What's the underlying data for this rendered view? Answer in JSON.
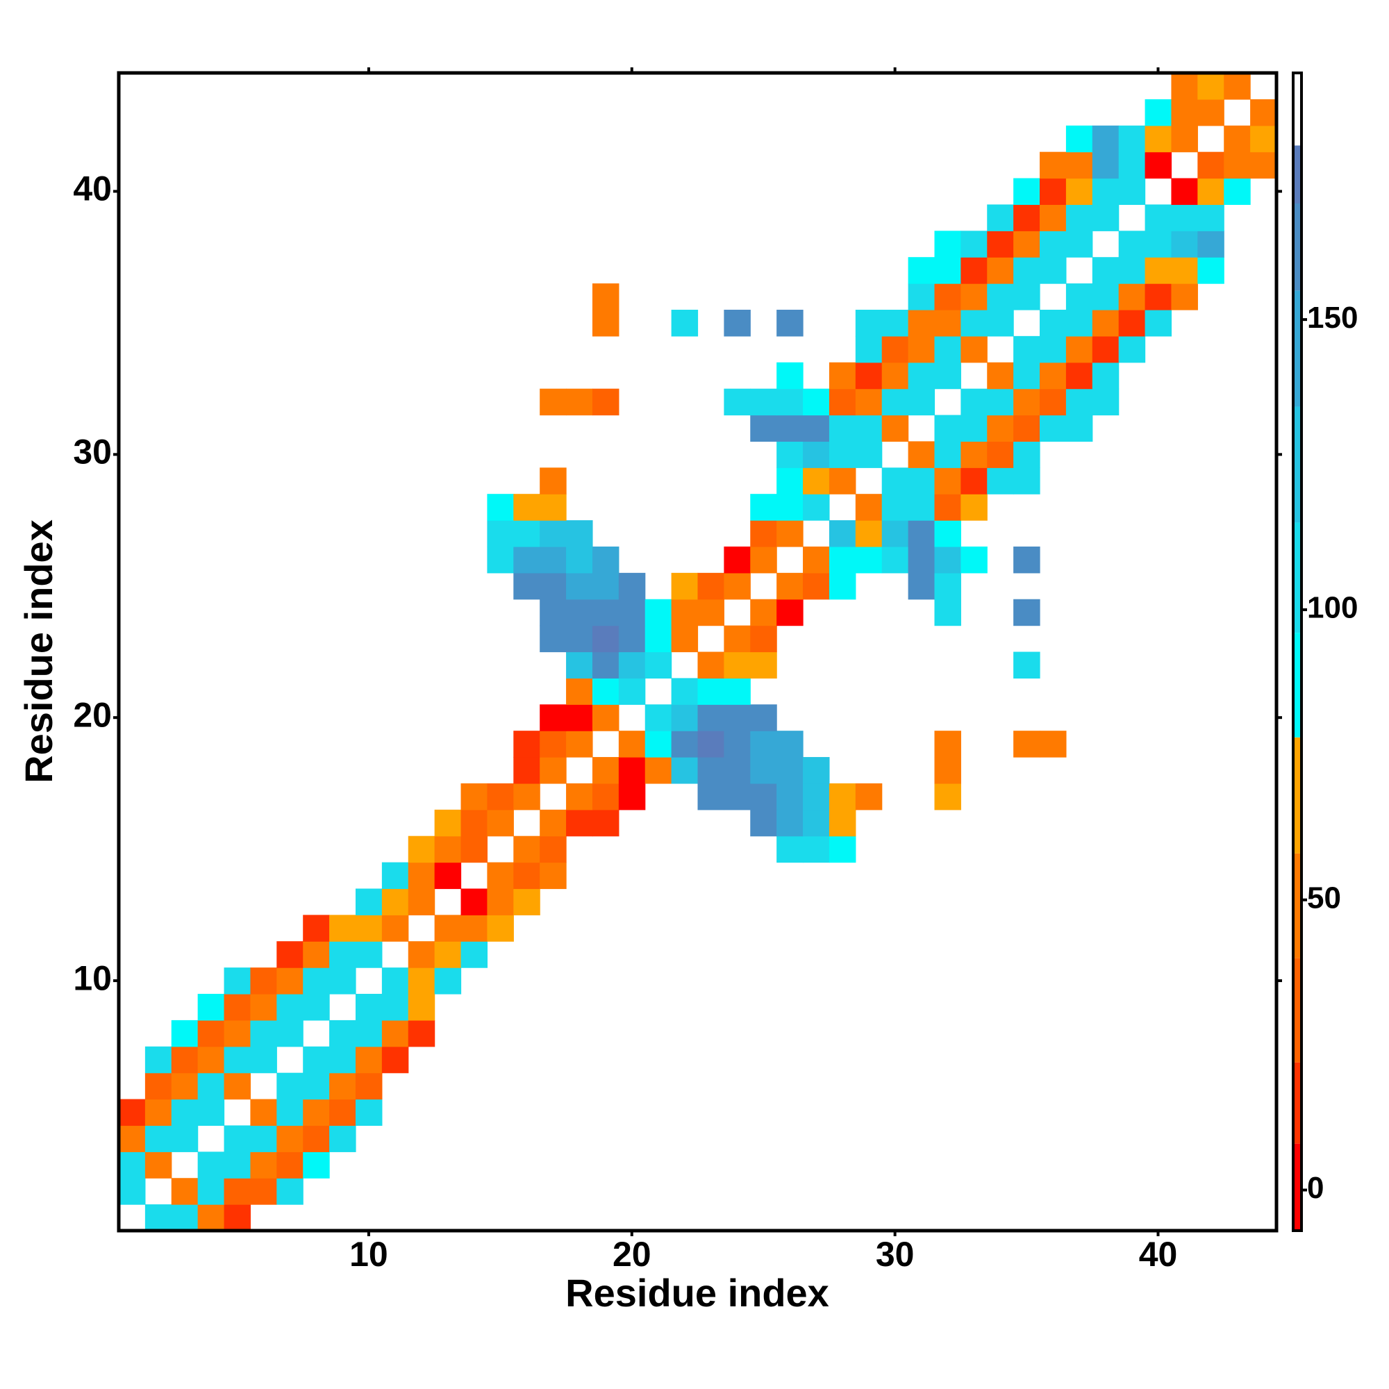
{
  "chart_data": {
    "type": "heatmap",
    "xlabel": "Residue index",
    "ylabel": "Residue index",
    "xlim": [
      0.5,
      44.5
    ],
    "ylim": [
      0.5,
      44.5
    ],
    "xticks": [
      10,
      20,
      30,
      40
    ],
    "yticks": [
      10,
      20,
      30,
      40
    ],
    "x": [
      2,
      3,
      4,
      5,
      1,
      3,
      4,
      5,
      6,
      7,
      1,
      2,
      4,
      5,
      6,
      7,
      8,
      1,
      2,
      3,
      5,
      6,
      7,
      8,
      9,
      1,
      2,
      3,
      4,
      6,
      7,
      8,
      9,
      10,
      2,
      3,
      4,
      5,
      7,
      8,
      9,
      10,
      2,
      3,
      4,
      5,
      6,
      8,
      9,
      10,
      11,
      3,
      4,
      5,
      6,
      7,
      9,
      10,
      11,
      12,
      4,
      5,
      6,
      7,
      8,
      10,
      11,
      12,
      5,
      6,
      7,
      8,
      9,
      11,
      12,
      13,
      7,
      8,
      9,
      10,
      12,
      13,
      14,
      8,
      9,
      10,
      11,
      13,
      14,
      15,
      10,
      11,
      12,
      14,
      15,
      16,
      11,
      12,
      13,
      15,
      16,
      17,
      12,
      13,
      14,
      16,
      17,
      26,
      27,
      28,
      13,
      14,
      15,
      17,
      18,
      19,
      25,
      26,
      27,
      28,
      14,
      15,
      16,
      18,
      19,
      20,
      23,
      24,
      25,
      26,
      27,
      28,
      29,
      32,
      16,
      17,
      19,
      20,
      21,
      22,
      23,
      24,
      25,
      26,
      27,
      32,
      16,
      17,
      18,
      20,
      21,
      22,
      23,
      24,
      25,
      26,
      32,
      35,
      36,
      17,
      18,
      19,
      21,
      22,
      23,
      24,
      25,
      18,
      19,
      20,
      22,
      23,
      24,
      18,
      19,
      20,
      21,
      23,
      24,
      25,
      35,
      17,
      18,
      19,
      20,
      21,
      22,
      24,
      25,
      17,
      18,
      19,
      20,
      21,
      22,
      23,
      25,
      26,
      32,
      35,
      16,
      17,
      18,
      19,
      20,
      22,
      23,
      24,
      26,
      27,
      28,
      31,
      32,
      15,
      16,
      17,
      18,
      19,
      24,
      25,
      27,
      28,
      29,
      30,
      31,
      32,
      33,
      35,
      15,
      16,
      17,
      18,
      25,
      26,
      28,
      29,
      30,
      31,
      32,
      15,
      16,
      17,
      25,
      26,
      27,
      29,
      30,
      31,
      32,
      33,
      17,
      26,
      27,
      28,
      30,
      31,
      32,
      33,
      34,
      35,
      26,
      27,
      28,
      29,
      31,
      32,
      33,
      34,
      35,
      25,
      26,
      27,
      28,
      29,
      30,
      32,
      33,
      34,
      35,
      36,
      37,
      17,
      18,
      19,
      24,
      25,
      26,
      27,
      28,
      29,
      30,
      31,
      33,
      34,
      35,
      36,
      37,
      38,
      26,
      28,
      29,
      30,
      31,
      32,
      34,
      35,
      36,
      37,
      38,
      29,
      30,
      31,
      32,
      33,
      35,
      36,
      37,
      38,
      39,
      19,
      22,
      24,
      26,
      29,
      30,
      31,
      32,
      33,
      34,
      36,
      37,
      38,
      39,
      40,
      19,
      31,
      32,
      33,
      34,
      35,
      37,
      38,
      39,
      40,
      41,
      31,
      32,
      33,
      34,
      35,
      36,
      38,
      39,
      40,
      41,
      42,
      32,
      33,
      34,
      35,
      36,
      37,
      39,
      40,
      41,
      42,
      34,
      35,
      36,
      37,
      38,
      40,
      41,
      42,
      35,
      36,
      37,
      38,
      39,
      41,
      42,
      43,
      36,
      37,
      38,
      39,
      40,
      42,
      43,
      44,
      37,
      38,
      39,
      40,
      41,
      43,
      44,
      40,
      41,
      42,
      44,
      41,
      42,
      43
    ],
    "y": [
      1,
      1,
      1,
      1,
      2,
      2,
      2,
      2,
      2,
      2,
      3,
      3,
      3,
      3,
      3,
      3,
      3,
      4,
      4,
      4,
      4,
      4,
      4,
      4,
      4,
      5,
      5,
      5,
      5,
      5,
      5,
      5,
      5,
      5,
      6,
      6,
      6,
      6,
      6,
      6,
      6,
      6,
      7,
      7,
      7,
      7,
      7,
      7,
      7,
      7,
      7,
      8,
      8,
      8,
      8,
      8,
      8,
      8,
      8,
      8,
      9,
      9,
      9,
      9,
      9,
      9,
      9,
      9,
      10,
      10,
      10,
      10,
      10,
      10,
      10,
      10,
      11,
      11,
      11,
      11,
      11,
      11,
      11,
      12,
      12,
      12,
      12,
      12,
      12,
      12,
      13,
      13,
      13,
      13,
      13,
      13,
      14,
      14,
      14,
      14,
      14,
      14,
      15,
      15,
      15,
      15,
      15,
      15,
      15,
      15,
      16,
      16,
      16,
      16,
      16,
      16,
      16,
      16,
      16,
      16,
      17,
      17,
      17,
      17,
      17,
      17,
      17,
      17,
      17,
      17,
      17,
      17,
      17,
      17,
      18,
      18,
      18,
      18,
      18,
      18,
      18,
      18,
      18,
      18,
      18,
      18,
      19,
      19,
      19,
      19,
      19,
      19,
      19,
      19,
      19,
      19,
      19,
      19,
      19,
      20,
      20,
      20,
      20,
      20,
      20,
      20,
      20,
      21,
      21,
      21,
      21,
      21,
      21,
      22,
      22,
      22,
      22,
      22,
      22,
      22,
      22,
      23,
      23,
      23,
      23,
      23,
      23,
      23,
      23,
      24,
      24,
      24,
      24,
      24,
      24,
      24,
      24,
      24,
      24,
      24,
      25,
      25,
      25,
      25,
      25,
      25,
      25,
      25,
      25,
      25,
      25,
      25,
      25,
      26,
      26,
      26,
      26,
      26,
      26,
      26,
      26,
      26,
      26,
      26,
      26,
      26,
      26,
      26,
      27,
      27,
      27,
      27,
      27,
      27,
      27,
      27,
      27,
      27,
      27,
      28,
      28,
      28,
      28,
      28,
      28,
      28,
      28,
      28,
      28,
      28,
      29,
      29,
      29,
      29,
      29,
      29,
      29,
      29,
      29,
      29,
      30,
      30,
      30,
      30,
      30,
      30,
      30,
      30,
      30,
      31,
      31,
      31,
      31,
      31,
      31,
      31,
      31,
      31,
      31,
      31,
      31,
      32,
      32,
      32,
      32,
      32,
      32,
      32,
      32,
      32,
      32,
      32,
      32,
      32,
      32,
      32,
      32,
      32,
      33,
      33,
      33,
      33,
      33,
      33,
      33,
      33,
      33,
      33,
      33,
      34,
      34,
      34,
      34,
      34,
      34,
      34,
      34,
      34,
      34,
      35,
      35,
      35,
      35,
      35,
      35,
      35,
      35,
      35,
      35,
      35,
      35,
      35,
      35,
      35,
      36,
      36,
      36,
      36,
      36,
      36,
      36,
      36,
      36,
      36,
      36,
      37,
      37,
      37,
      37,
      37,
      37,
      37,
      37,
      37,
      37,
      37,
      38,
      38,
      38,
      38,
      38,
      38,
      38,
      38,
      38,
      38,
      39,
      39,
      39,
      39,
      39,
      39,
      39,
      39,
      40,
      40,
      40,
      40,
      40,
      40,
      40,
      40,
      41,
      41,
      41,
      41,
      41,
      41,
      41,
      41,
      42,
      42,
      42,
      42,
      42,
      42,
      42,
      43,
      43,
      43,
      43,
      44,
      44,
      44
    ],
    "values": [
      105,
      105,
      50,
      15,
      105,
      50,
      105,
      35,
      35,
      105,
      105,
      50,
      105,
      105,
      50,
      35,
      88,
      50,
      105,
      105,
      105,
      105,
      50,
      35,
      105,
      15,
      50,
      105,
      105,
      50,
      105,
      50,
      35,
      105,
      35,
      50,
      105,
      50,
      105,
      105,
      50,
      35,
      105,
      35,
      50,
      105,
      105,
      105,
      105,
      50,
      15,
      88,
      35,
      50,
      105,
      105,
      105,
      105,
      50,
      15,
      88,
      35,
      50,
      105,
      105,
      105,
      105,
      68,
      105,
      35,
      50,
      105,
      105,
      105,
      68,
      105,
      15,
      50,
      105,
      105,
      50,
      68,
      105,
      15,
      68,
      68,
      50,
      50,
      50,
      68,
      105,
      68,
      50,
      2,
      50,
      68,
      105,
      50,
      2,
      50,
      35,
      50,
      68,
      50,
      35,
      50,
      35,
      105,
      105,
      88,
      68,
      35,
      50,
      50,
      15,
      15,
      162,
      145,
      125,
      68,
      50,
      35,
      50,
      50,
      35,
      2,
      162,
      162,
      162,
      145,
      125,
      68,
      50,
      68,
      15,
      50,
      50,
      2,
      50,
      125,
      162,
      162,
      145,
      145,
      125,
      50,
      15,
      35,
      50,
      50,
      88,
      162,
      175,
      162,
      145,
      145,
      50,
      50,
      50,
      2,
      2,
      50,
      105,
      125,
      162,
      162,
      162,
      50,
      88,
      105,
      105,
      88,
      88,
      125,
      162,
      125,
      105,
      50,
      68,
      68,
      105,
      162,
      162,
      175,
      162,
      88,
      50,
      50,
      35,
      162,
      162,
      162,
      162,
      88,
      50,
      50,
      50,
      2,
      105,
      162,
      162,
      162,
      145,
      145,
      162,
      68,
      35,
      50,
      50,
      35,
      88,
      162,
      105,
      105,
      145,
      145,
      125,
      145,
      2,
      50,
      50,
      88,
      88,
      105,
      162,
      125,
      88,
      162,
      105,
      105,
      125,
      125,
      35,
      50,
      125,
      68,
      125,
      162,
      88,
      88,
      68,
      68,
      88,
      88,
      105,
      50,
      105,
      105,
      35,
      68,
      50,
      88,
      68,
      50,
      105,
      105,
      50,
      15,
      105,
      105,
      105,
      125,
      105,
      105,
      50,
      105,
      50,
      35,
      105,
      162,
      162,
      162,
      105,
      105,
      50,
      105,
      105,
      50,
      35,
      105,
      105,
      50,
      50,
      35,
      105,
      105,
      105,
      88,
      35,
      50,
      105,
      105,
      105,
      105,
      50,
      35,
      105,
      105,
      88,
      50,
      15,
      50,
      105,
      105,
      50,
      105,
      50,
      15,
      105,
      105,
      35,
      50,
      105,
      50,
      105,
      105,
      50,
      15,
      105,
      50,
      105,
      162,
      162,
      105,
      105,
      50,
      50,
      105,
      105,
      105,
      105,
      50,
      15,
      105,
      50,
      105,
      35,
      50,
      105,
      105,
      105,
      105,
      50,
      15,
      50,
      88,
      88,
      15,
      50,
      105,
      105,
      105,
      105,
      68,
      68,
      88,
      88,
      105,
      15,
      50,
      105,
      105,
      105,
      105,
      125,
      145,
      105,
      15,
      50,
      105,
      105,
      105,
      105,
      105,
      88,
      15,
      68,
      105,
      105,
      2,
      68,
      88,
      50,
      50,
      145,
      105,
      2,
      35,
      50,
      50,
      88,
      145,
      105,
      68,
      50,
      50,
      68,
      88,
      50,
      50,
      50,
      50,
      68,
      50
    ],
    "colorbar": {
      "lim": [
        -7,
        192.5
      ],
      "ticks": [
        0,
        50,
        100,
        150
      ],
      "bands": [
        {
          "from": -7,
          "to": 8,
          "color": "#ff0000"
        },
        {
          "from": 8,
          "to": 22,
          "color": "#ff3300"
        },
        {
          "from": 22,
          "to": 40,
          "color": "#ff6200"
        },
        {
          "from": 40,
          "to": 58,
          "color": "#ff7a00"
        },
        {
          "from": 58,
          "to": 78,
          "color": "#ffa400"
        },
        {
          "from": 78,
          "to": 96,
          "color": "#00f8f8"
        },
        {
          "from": 96,
          "to": 115,
          "color": "#1adcec"
        },
        {
          "from": 115,
          "to": 135,
          "color": "#26c3e2"
        },
        {
          "from": 135,
          "to": 155,
          "color": "#36a8d6"
        },
        {
          "from": 155,
          "to": 170,
          "color": "#4a8cc4"
        },
        {
          "from": 170,
          "to": 180,
          "color": "#5a7cbc"
        },
        {
          "from": 180,
          "to": 192.5,
          "color": "#ffffff"
        }
      ]
    }
  }
}
